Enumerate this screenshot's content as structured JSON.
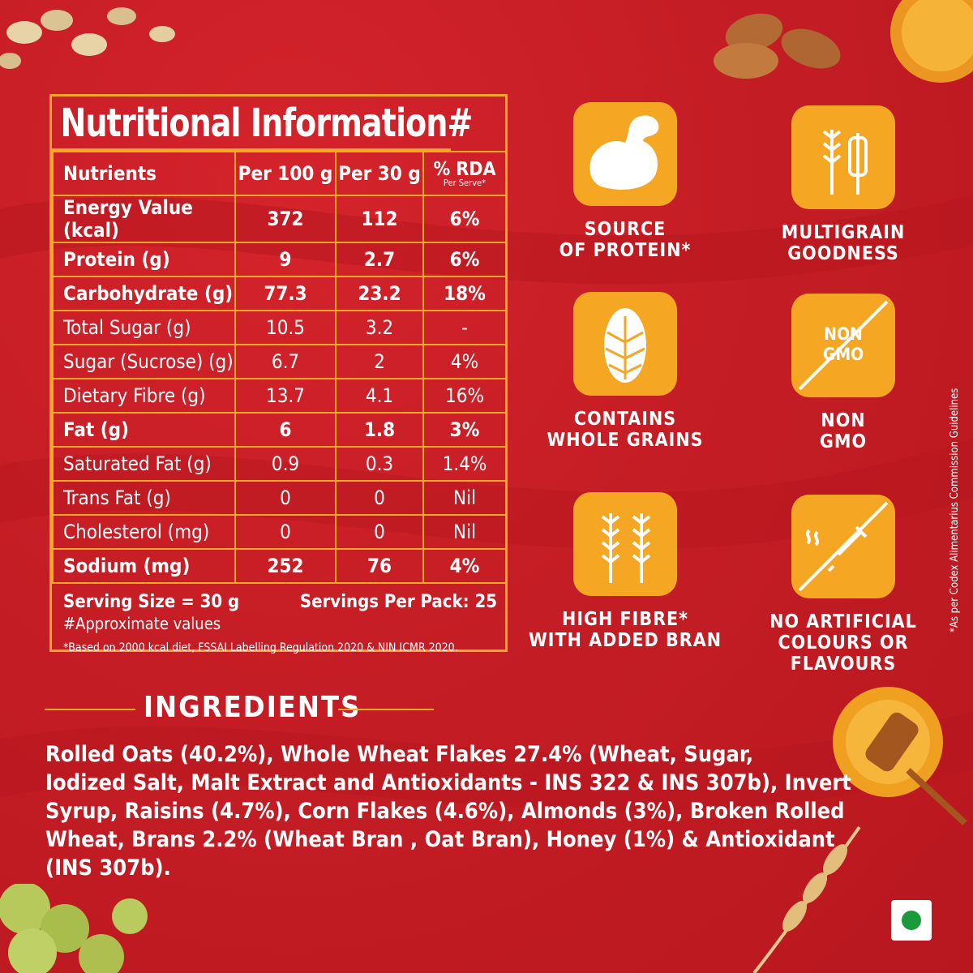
{
  "nutrition": {
    "title": "Nutritional Information#",
    "headers": {
      "nutrients": "Nutrients",
      "per100": "Per 100 g",
      "per30": "Per 30 g",
      "rda": "% RDA",
      "rda_sub": "Per Serve*"
    },
    "rows": [
      {
        "name": "Energy Value (kcal)",
        "per100": "372",
        "per30": "112",
        "rda": "6%"
      },
      {
        "name": "Protein (g)",
        "per100": "9",
        "per30": "2.7",
        "rda": "6%"
      },
      {
        "name": "Carbohydrate (g)",
        "per100": "77.3",
        "per30": "23.2",
        "rda": "18%"
      },
      {
        "name": "Total Sugar (g)",
        "per100": "10.5",
        "per30": "3.2",
        "rda": "-"
      },
      {
        "name": "Sugar (Sucrose) (g)",
        "per100": "6.7",
        "per30": "2",
        "rda": "4%"
      },
      {
        "name": "Dietary Fibre (g)",
        "per100": "13.7",
        "per30": "4.1",
        "rda": "16%"
      },
      {
        "name": "Fat (g)",
        "per100": "6",
        "per30": "1.8",
        "rda": "3%"
      },
      {
        "name": "Saturated Fat (g)",
        "per100": "0.9",
        "per30": "0.3",
        "rda": "1.4%"
      },
      {
        "name": "Trans Fat (g)",
        "per100": "0",
        "per30": "0",
        "rda": "Nil"
      },
      {
        "name": "Cholesterol (mg)",
        "per100": "0",
        "per30": "0",
        "rda": "Nil"
      },
      {
        "name": "Sodium (mg)",
        "per100": "252",
        "per30": "76",
        "rda": "4%"
      }
    ],
    "serving_size": "Serving Size = 30 g",
    "servings_per_pack": "Servings Per Pack: 25",
    "approx_note": "#Approximate values",
    "based_note": "*Based on 2000 kcal diet, FSSAI Labelling Regulation 2020 & NIN ICMR 2020."
  },
  "badges": {
    "protein": {
      "line1": "SOURCE",
      "line2": "OF PROTEIN*",
      "icon": "flexed-arm-icon"
    },
    "multigrain": {
      "line1": "MULTIGRAIN",
      "line2": "GOODNESS",
      "icon": "grains-icon"
    },
    "wholegrain": {
      "line1": "CONTAINS",
      "line2": "WHOLE GRAINS",
      "icon": "wheat-grain-icon"
    },
    "nongmo": {
      "line1": "NON",
      "line2": "GMO",
      "tile_line1": "NON",
      "tile_line2": "GMO",
      "icon": "non-gmo-icon"
    },
    "fibre": {
      "line1": "HIGH FIBRE*",
      "line2": "WITH ADDED BRAN",
      "icon": "wheat-stalks-icon"
    },
    "noartificial": {
      "line1": "NO ARTIFICIAL",
      "line2": "COLOURS OR FLAVOURS",
      "icon": "no-dropper-icon"
    }
  },
  "ingredients": {
    "heading": "INGREDIENTS",
    "lines": [
      "Rolled Oats (40.2%), Whole Wheat Flakes 27.4% (Wheat, Sugar,",
      "Iodized Salt, Malt Extract and Antioxidants - INS 322 & INS 307b), Invert",
      "Syrup, Raisins (4.7%), Corn Flakes (4.6%), Almonds (3%), Broken Rolled",
      "Wheat, Brans 2.2% (Wheat Bran , Oat Bran), Honey (1%) & Antioxidant",
      "(INS 307b)."
    ]
  },
  "side_note": "*As per Codex Alimentarius Commission Guidelines",
  "colors": {
    "background": "#c51d25",
    "accent": "#f4a825",
    "badge": "#f5a623",
    "veg_dot": "#1a9a3a"
  }
}
